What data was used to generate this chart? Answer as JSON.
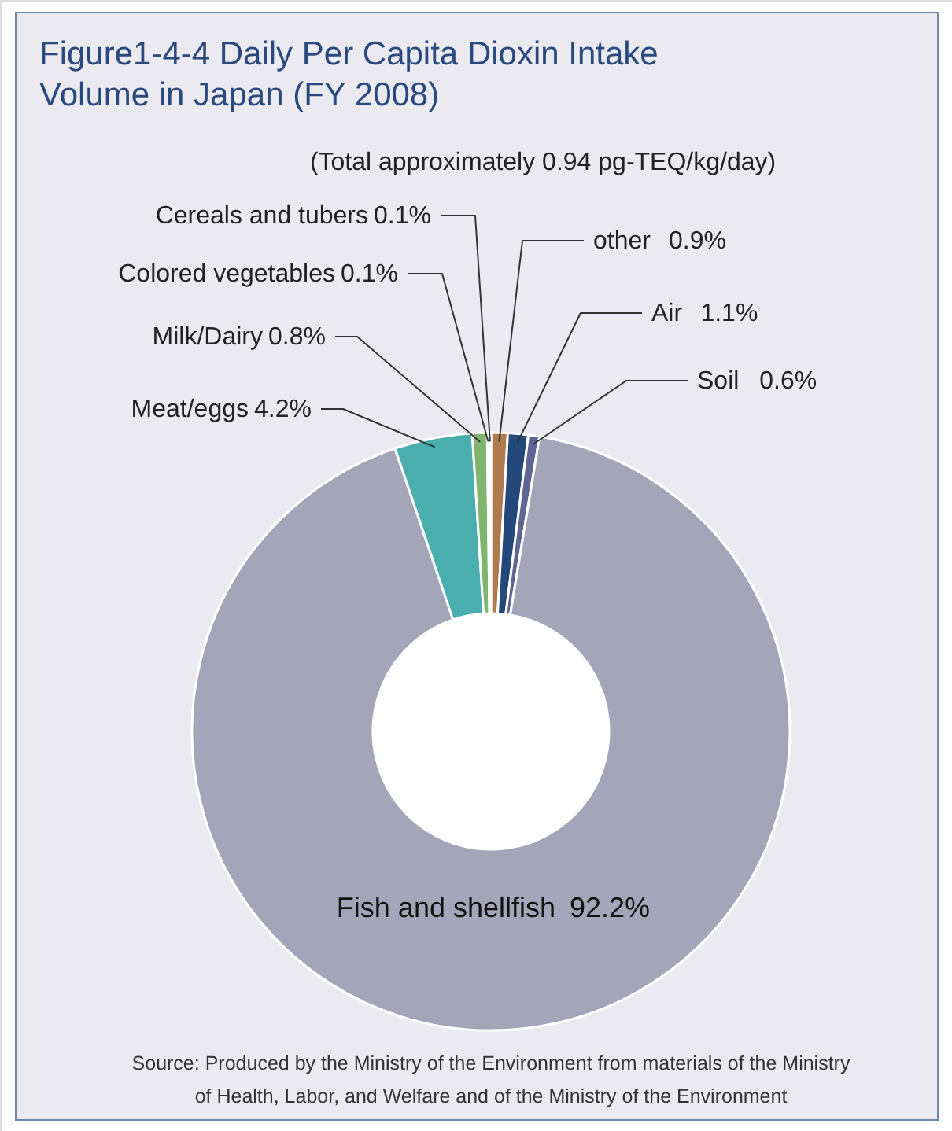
{
  "chart_data": {
    "type": "donut",
    "title": "Figure1-4-4 Daily Per Capita Dioxin Intake\nVolume in Japan (FY 2008)",
    "categories": [
      "other",
      "Air",
      "Soil",
      "Fish and shellfish",
      "Meat/eggs",
      "Milk/Dairy",
      "Colored vegetables",
      "Cereals and tubers"
    ],
    "values": [
      0.9,
      1.1,
      0.6,
      92.2,
      4.2,
      0.8,
      0.1,
      0.1
    ],
    "colors": [
      "#b07a50",
      "#24487a",
      "#5e6592",
      "#a5a5ba",
      "#4aaeaf",
      "#7fb56f",
      "#c9c26a",
      "#d9a35e"
    ],
    "value_labels": [
      "0.9%",
      "1.1%",
      "0.6%",
      "92.2%",
      "4.2%",
      "0.8%",
      "0.1%",
      "0.1%"
    ],
    "annotations": [
      "(Total approximately 0.94 pg-TEQ/kg/day)",
      "Source: Produced by the Ministry of the Environment from materials of the Ministry\nof Health, Labor, and Welfare and of the Ministry of the Environment"
    ]
  }
}
